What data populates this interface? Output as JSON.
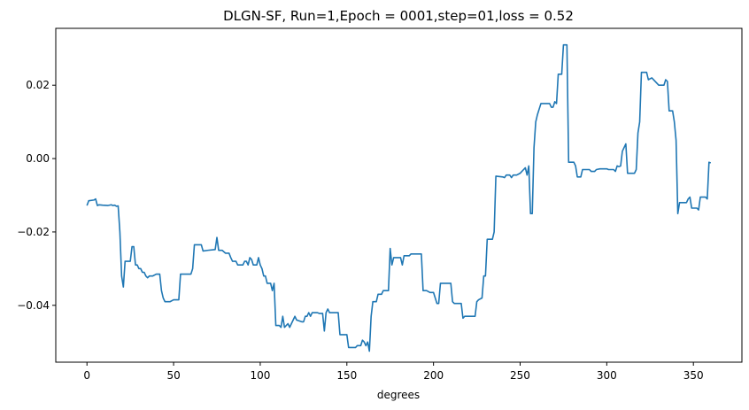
{
  "chart_data": {
    "type": "line",
    "title": "DLGN-SF, Run=1,Epoch = 0001,step=01,loss = 0.52",
    "xlabel": "degrees",
    "ylabel": "",
    "xlim": [
      -18,
      378
    ],
    "ylim": [
      -0.0555,
      0.0355
    ],
    "xticks": [
      0,
      50,
      100,
      150,
      200,
      250,
      300,
      350
    ],
    "xtick_labels": [
      "0",
      "50",
      "100",
      "150",
      "200",
      "250",
      "300",
      "350"
    ],
    "yticks": [
      -0.04,
      -0.02,
      0.0,
      0.02
    ],
    "ytick_labels": [
      "−0.04",
      "−0.02",
      "0.00",
      "0.02"
    ],
    "grid": false,
    "series": [
      {
        "color": "#1f77b4",
        "points": [
          [
            0,
            -0.0128
          ],
          [
            1,
            -0.0115
          ],
          [
            4,
            -0.0113
          ],
          [
            5,
            -0.011
          ],
          [
            6,
            -0.0128
          ],
          [
            7,
            -0.0126
          ],
          [
            9,
            -0.0127
          ],
          [
            12,
            -0.0128
          ],
          [
            14,
            -0.0126
          ],
          [
            15,
            -0.0128
          ],
          [
            16,
            -0.0127
          ],
          [
            17,
            -0.013
          ],
          [
            18,
            -0.0129
          ],
          [
            19,
            -0.02
          ],
          [
            20,
            -0.032
          ],
          [
            21,
            -0.035
          ],
          [
            22,
            -0.028
          ],
          [
            25,
            -0.028
          ],
          [
            26,
            -0.024
          ],
          [
            27,
            -0.024
          ],
          [
            28,
            -0.029
          ],
          [
            29,
            -0.029
          ],
          [
            30,
            -0.03
          ],
          [
            31,
            -0.03
          ],
          [
            32,
            -0.031
          ],
          [
            33,
            -0.031
          ],
          [
            34,
            -0.032
          ],
          [
            35,
            -0.0325
          ],
          [
            36,
            -0.032
          ],
          [
            38,
            -0.032
          ],
          [
            40,
            -0.0315
          ],
          [
            42,
            -0.0315
          ],
          [
            43,
            -0.036
          ],
          [
            44,
            -0.038
          ],
          [
            45,
            -0.039
          ],
          [
            48,
            -0.039
          ],
          [
            50,
            -0.0385
          ],
          [
            53,
            -0.0385
          ],
          [
            54,
            -0.0315
          ],
          [
            60,
            -0.0315
          ],
          [
            61,
            -0.03
          ],
          [
            62,
            -0.0235
          ],
          [
            66,
            -0.0235
          ],
          [
            67,
            -0.0252
          ],
          [
            70,
            -0.025
          ],
          [
            74,
            -0.0248
          ],
          [
            75,
            -0.0215
          ],
          [
            76,
            -0.025
          ],
          [
            78,
            -0.025
          ],
          [
            80,
            -0.0258
          ],
          [
            82,
            -0.0258
          ],
          [
            83,
            -0.027
          ],
          [
            84,
            -0.028
          ],
          [
            86,
            -0.028
          ],
          [
            87,
            -0.029
          ],
          [
            90,
            -0.029
          ],
          [
            91,
            -0.028
          ],
          [
            92,
            -0.028
          ],
          [
            93,
            -0.029
          ],
          [
            94,
            -0.027
          ],
          [
            95,
            -0.0275
          ],
          [
            96,
            -0.029
          ],
          [
            98,
            -0.029
          ],
          [
            99,
            -0.027
          ],
          [
            100,
            -0.029
          ],
          [
            101,
            -0.03
          ],
          [
            102,
            -0.032
          ],
          [
            103,
            -0.032
          ],
          [
            104,
            -0.034
          ],
          [
            106,
            -0.034
          ],
          [
            107,
            -0.036
          ],
          [
            108,
            -0.034
          ],
          [
            109,
            -0.0455
          ],
          [
            111,
            -0.0455
          ],
          [
            112,
            -0.046
          ],
          [
            113,
            -0.043
          ],
          [
            114,
            -0.046
          ],
          [
            116,
            -0.045
          ],
          [
            117,
            -0.046
          ],
          [
            118,
            -0.045
          ],
          [
            119,
            -0.044
          ],
          [
            120,
            -0.043
          ],
          [
            121,
            -0.044
          ],
          [
            124,
            -0.0445
          ],
          [
            125,
            -0.0445
          ],
          [
            126,
            -0.043
          ],
          [
            127,
            -0.043
          ],
          [
            128,
            -0.042
          ],
          [
            129,
            -0.043
          ],
          [
            130,
            -0.042
          ],
          [
            132,
            -0.042
          ],
          [
            133,
            -0.042
          ],
          [
            134,
            -0.0422
          ],
          [
            136,
            -0.0422
          ],
          [
            137,
            -0.047
          ],
          [
            138,
            -0.042
          ],
          [
            139,
            -0.041
          ],
          [
            140,
            -0.042
          ],
          [
            145,
            -0.042
          ],
          [
            146,
            -0.048
          ],
          [
            150,
            -0.048
          ],
          [
            151,
            -0.0515
          ],
          [
            155,
            -0.0515
          ],
          [
            156,
            -0.051
          ],
          [
            158,
            -0.051
          ],
          [
            159,
            -0.0495
          ],
          [
            160,
            -0.05
          ],
          [
            161,
            -0.051
          ],
          [
            162,
            -0.05
          ],
          [
            163,
            -0.0525
          ],
          [
            164,
            -0.043
          ],
          [
            165,
            -0.039
          ],
          [
            167,
            -0.039
          ],
          [
            168,
            -0.037
          ],
          [
            170,
            -0.037
          ],
          [
            171,
            -0.036
          ],
          [
            174,
            -0.036
          ],
          [
            175,
            -0.0245
          ],
          [
            176,
            -0.029
          ],
          [
            177,
            -0.027
          ],
          [
            181,
            -0.027
          ],
          [
            182,
            -0.029
          ],
          [
            183,
            -0.0265
          ],
          [
            186,
            -0.0265
          ],
          [
            187,
            -0.026
          ],
          [
            193,
            -0.026
          ],
          [
            194,
            -0.036
          ],
          [
            196,
            -0.036
          ],
          [
            198,
            -0.0365
          ],
          [
            200,
            -0.0365
          ],
          [
            201,
            -0.038
          ],
          [
            202,
            -0.0395
          ],
          [
            203,
            -0.0395
          ],
          [
            204,
            -0.034
          ],
          [
            210,
            -0.034
          ],
          [
            211,
            -0.039
          ],
          [
            212,
            -0.0395
          ],
          [
            216,
            -0.0395
          ],
          [
            217,
            -0.0435
          ],
          [
            218,
            -0.043
          ],
          [
            224,
            -0.043
          ],
          [
            225,
            -0.039
          ],
          [
            226,
            -0.0385
          ],
          [
            228,
            -0.038
          ],
          [
            229,
            -0.032
          ],
          [
            230,
            -0.032
          ],
          [
            231,
            -0.022
          ],
          [
            234,
            -0.022
          ],
          [
            235,
            -0.02
          ],
          [
            236,
            -0.0048
          ],
          [
            240,
            -0.005
          ],
          [
            241,
            -0.0052
          ],
          [
            242,
            -0.0045
          ],
          [
            244,
            -0.0045
          ],
          [
            245,
            -0.0052
          ],
          [
            246,
            -0.0045
          ],
          [
            248,
            -0.0045
          ],
          [
            250,
            -0.004
          ],
          [
            252,
            -0.003
          ],
          [
            253,
            -0.0025
          ],
          [
            254,
            -0.0045
          ],
          [
            255,
            -0.002
          ],
          [
            256,
            -0.015
          ],
          [
            257,
            -0.015
          ],
          [
            258,
            0.003
          ],
          [
            259,
            0.01
          ],
          [
            260,
            0.012
          ],
          [
            262,
            0.015
          ],
          [
            267,
            0.015
          ],
          [
            268,
            0.014
          ],
          [
            269,
            0.014
          ],
          [
            270,
            0.0155
          ],
          [
            271,
            0.015
          ],
          [
            272,
            0.023
          ],
          [
            274,
            0.023
          ],
          [
            275,
            0.031
          ],
          [
            277,
            0.031
          ],
          [
            278,
            -0.001
          ],
          [
            281,
            -0.001
          ],
          [
            282,
            -0.002
          ],
          [
            283,
            -0.005
          ],
          [
            285,
            -0.005
          ],
          [
            286,
            -0.003
          ],
          [
            290,
            -0.003
          ],
          [
            291,
            -0.0035
          ],
          [
            293,
            -0.0035
          ],
          [
            294,
            -0.003
          ],
          [
            296,
            -0.0028
          ],
          [
            300,
            -0.0028
          ],
          [
            301,
            -0.003
          ],
          [
            304,
            -0.003
          ],
          [
            305,
            -0.0035
          ],
          [
            306,
            -0.002
          ],
          [
            307,
            -0.0022
          ],
          [
            308,
            -0.002
          ],
          [
            309,
            0.002
          ],
          [
            310,
            0.003
          ],
          [
            311,
            0.004
          ],
          [
            312,
            -0.004
          ],
          [
            316,
            -0.004
          ],
          [
            317,
            -0.003
          ],
          [
            318,
            0.007
          ],
          [
            319,
            0.01
          ],
          [
            320,
            0.0235
          ],
          [
            323,
            0.0235
          ],
          [
            324,
            0.0215
          ],
          [
            326,
            0.022
          ],
          [
            328,
            0.021
          ],
          [
            330,
            0.02
          ],
          [
            332,
            0.02
          ],
          [
            333,
            0.02
          ],
          [
            334,
            0.0215
          ],
          [
            335,
            0.021
          ],
          [
            336,
            0.013
          ],
          [
            338,
            0.013
          ],
          [
            339,
            0.01
          ],
          [
            340,
            0.005
          ],
          [
            341,
            -0.015
          ],
          [
            342,
            -0.012
          ],
          [
            344,
            -0.012
          ],
          [
            346,
            -0.012
          ],
          [
            347,
            -0.011
          ],
          [
            348,
            -0.0105
          ],
          [
            349,
            -0.0135
          ],
          [
            352,
            -0.0135
          ],
          [
            353,
            -0.014
          ],
          [
            354,
            -0.0105
          ],
          [
            356,
            -0.0105
          ],
          [
            357,
            -0.0105
          ],
          [
            358,
            -0.011
          ],
          [
            359,
            -0.001
          ],
          [
            360,
            -0.0012
          ]
        ]
      }
    ]
  }
}
